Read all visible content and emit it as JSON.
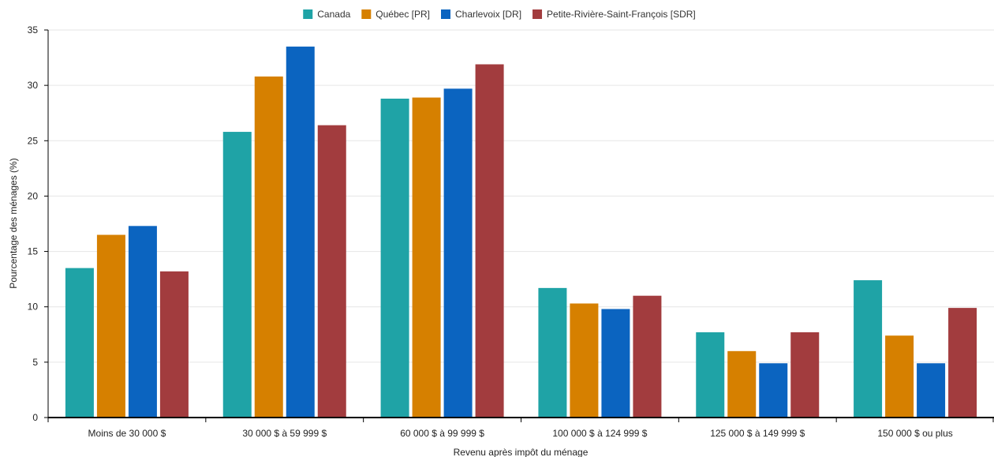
{
  "chart_data": {
    "type": "bar",
    "title": "",
    "xlabel": "Revenu après impôt du ménage",
    "ylabel": "Pourcentage des ménages (%)",
    "ylim": [
      0,
      35
    ],
    "yticks": [
      0,
      5,
      10,
      15,
      20,
      25,
      30,
      35
    ],
    "grid": true,
    "legend_position": "top-center",
    "categories": [
      "Moins de 30 000 $",
      "30 000 $ à 59 999 $",
      "60 000 $ à 99 999 $",
      "100 000 $ à 124 999 $",
      "125 000 $ à 149 999 $",
      "150 000 $ ou plus"
    ],
    "series": [
      {
        "name": "Canada",
        "color": "#1fa3a6",
        "values": [
          13.5,
          25.8,
          28.8,
          11.7,
          7.7,
          12.4
        ]
      },
      {
        "name": "Québec [PR]",
        "color": "#d68000",
        "values": [
          16.5,
          30.8,
          28.9,
          10.3,
          6.0,
          7.4
        ]
      },
      {
        "name": "Charlevoix [DR]",
        "color": "#0b64c0",
        "values": [
          17.3,
          33.5,
          29.7,
          9.8,
          4.9,
          4.9
        ]
      },
      {
        "name": "Petite-Rivière-Saint-François [SDR]",
        "color": "#a23c3e",
        "values": [
          13.2,
          26.4,
          31.9,
          11.0,
          7.7,
          9.9
        ]
      }
    ]
  }
}
